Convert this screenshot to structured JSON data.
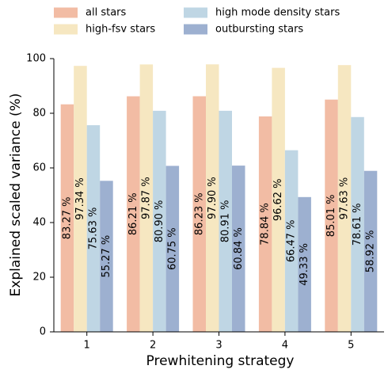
{
  "chart_data": {
    "type": "bar",
    "x_label": "Prewhitening strategy",
    "y_label": "Explained scaled variance (%)",
    "categories": [
      "1",
      "2",
      "3",
      "4",
      "5"
    ],
    "series": [
      {
        "name": "all stars",
        "color": "#f2bca4",
        "values": [
          83.27,
          86.21,
          86.23,
          78.84,
          85.01
        ],
        "value_labels": [
          "83.27 %",
          "86.21 %",
          "86.23 %",
          "78.84 %",
          "85.01 %"
        ]
      },
      {
        "name": "high-fsv stars",
        "color": "#f6e7c1",
        "values": [
          97.34,
          97.87,
          97.9,
          96.62,
          97.63
        ],
        "value_labels": [
          "97.34 %",
          "97.87 %",
          "97.90 %",
          "96.62 %",
          "97.63 %"
        ]
      },
      {
        "name": "high mode density stars",
        "color": "#bfd6e4",
        "values": [
          75.63,
          80.9,
          80.91,
          66.47,
          78.61
        ],
        "value_labels": [
          "75.63 %",
          "80.90 %",
          "80.91 %",
          "66.47 %",
          "78.61 %"
        ]
      },
      {
        "name": "outbursting stars",
        "color": "#9db0d0",
        "values": [
          55.27,
          60.75,
          60.84,
          49.33,
          58.92
        ],
        "value_labels": [
          "55.27 %",
          "60.75 %",
          "60.84 %",
          "49.33 %",
          "58.92 %"
        ]
      }
    ],
    "ylim": [
      0,
      100
    ],
    "yticks": [
      0,
      20,
      40,
      60,
      80,
      100
    ]
  }
}
